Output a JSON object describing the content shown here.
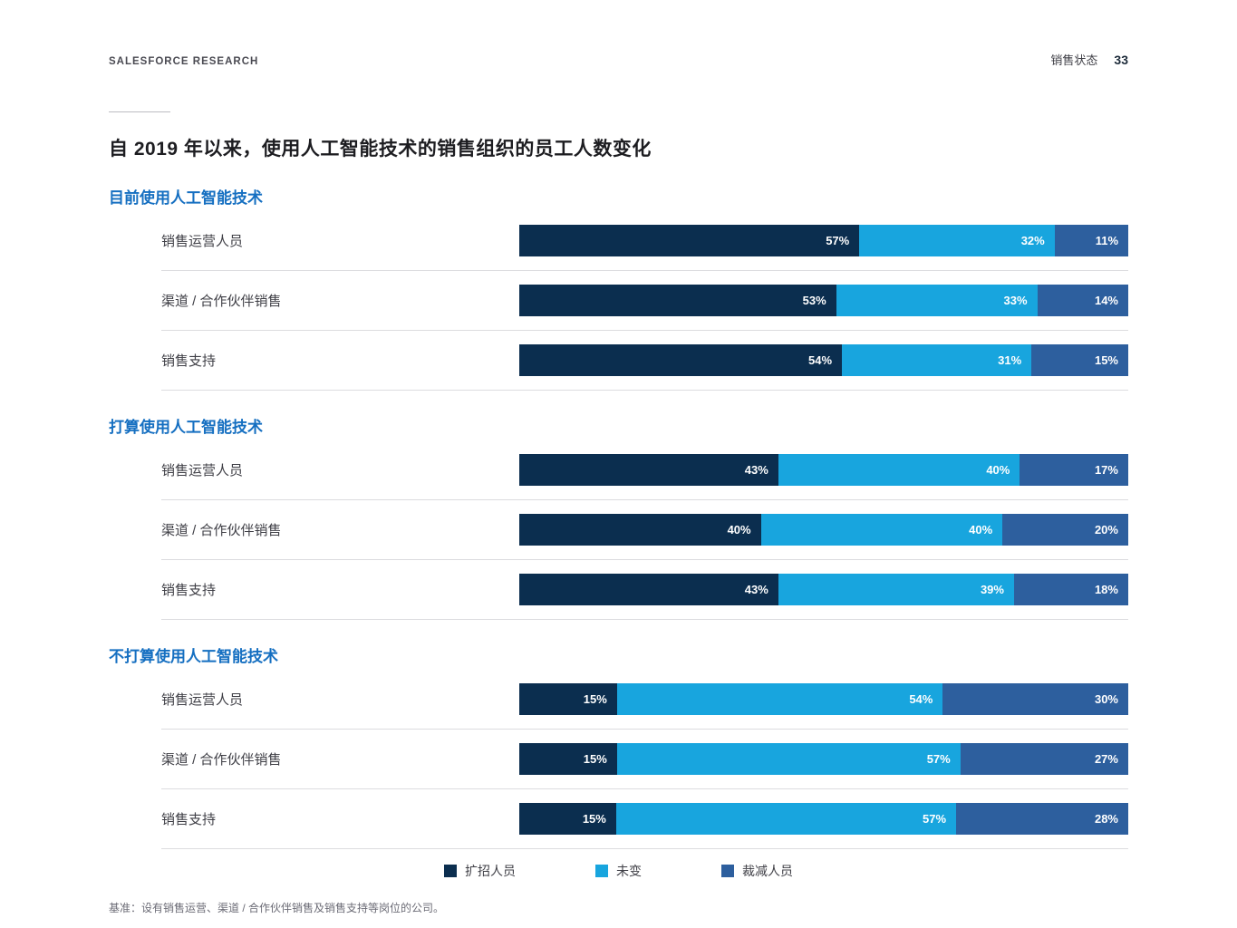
{
  "header": {
    "left": "SALESFORCE RESEARCH",
    "right_label": "销售状态",
    "page_number": "33"
  },
  "title": "自 2019 年以来，使用人工智能技术的销售组织的员工人数变化",
  "footnote": "基准：设有销售运营、渠道 / 合作伙伴销售及销售支持等岗位的公司。",
  "colors": {
    "expand": "#0b2e4f",
    "unchanged": "#18a5de",
    "reduce": "#2d5f9e",
    "section_heading": "#156fc1"
  },
  "legend": [
    {
      "label": "扩招人员",
      "color": "#0b2e4f"
    },
    {
      "label": "未变",
      "color": "#18a5de"
    },
    {
      "label": "裁减人员",
      "color": "#2d5f9e"
    }
  ],
  "chart_data": {
    "type": "bar",
    "orientation": "horizontal",
    "stacked": true,
    "unit": "%",
    "xlim": [
      0,
      100
    ],
    "series_names": [
      "扩招人员",
      "未变",
      "裁减人员"
    ],
    "sections": [
      {
        "heading": "目前使用人工智能技术",
        "rows": [
          {
            "label": "销售运营人员",
            "values": [
              57,
              32,
              11
            ]
          },
          {
            "label": "渠道 / 合作伙伴销售",
            "values": [
              53,
              33,
              14
            ]
          },
          {
            "label": "销售支持",
            "values": [
              54,
              31,
              15
            ]
          }
        ]
      },
      {
        "heading": "打算使用人工智能技术",
        "rows": [
          {
            "label": "销售运营人员",
            "values": [
              43,
              40,
              17
            ]
          },
          {
            "label": "渠道 / 合作伙伴销售",
            "values": [
              40,
              40,
              20
            ]
          },
          {
            "label": "销售支持",
            "values": [
              43,
              39,
              18
            ]
          }
        ]
      },
      {
        "heading": "不打算使用人工智能技术",
        "rows": [
          {
            "label": "销售运营人员",
            "values": [
              15,
              54,
              30
            ]
          },
          {
            "label": "渠道 / 合作伙伴销售",
            "values": [
              15,
              57,
              27
            ]
          },
          {
            "label": "销售支持",
            "values": [
              15,
              57,
              28
            ]
          }
        ]
      }
    ]
  }
}
